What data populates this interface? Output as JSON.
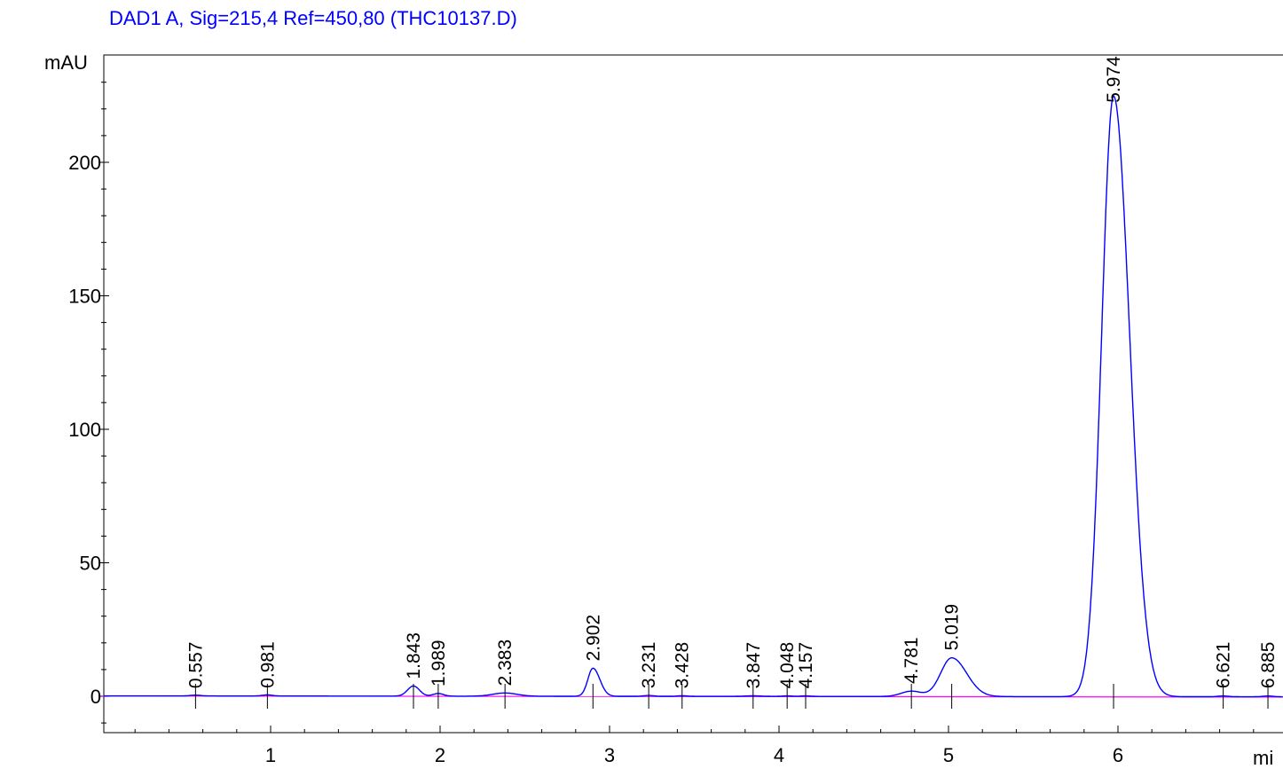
{
  "chart_data": {
    "type": "line",
    "title": "DAD1 A, Sig=215,4 Ref=450,80 (THC10137.D)",
    "ylabel": "mAU",
    "xlabel": "mi",
    "xlim": [
      0,
      7.0
    ],
    "ylim": [
      -15,
      240
    ],
    "x_ticks": [
      1,
      2,
      3,
      4,
      5,
      6
    ],
    "y_ticks": [
      0,
      50,
      100,
      150,
      200
    ],
    "grid": false,
    "colors": {
      "signal": "#0000ff",
      "baseline": "#ff00ff",
      "axis": "#000000",
      "title": "#0000ff"
    },
    "peaks": [
      {
        "rt": 0.557,
        "label": "0.557",
        "height": 0.3,
        "width": 0.03
      },
      {
        "rt": 0.981,
        "label": "0.981",
        "height": 0.4,
        "width": 0.03
      },
      {
        "rt": 1.843,
        "label": "1.843",
        "height": 3.8,
        "width": 0.035
      },
      {
        "rt": 1.989,
        "label": "1.989",
        "height": 1.0,
        "width": 0.03
      },
      {
        "rt": 2.383,
        "label": "2.383",
        "height": 1.2,
        "width": 0.07
      },
      {
        "rt": 2.902,
        "label": "2.902",
        "height": 10.5,
        "width": 0.03
      },
      {
        "rt": 3.231,
        "label": "3.231",
        "height": 0.3,
        "width": 0.03
      },
      {
        "rt": 3.428,
        "label": "3.428",
        "height": 0.2,
        "width": 0.03
      },
      {
        "rt": 3.847,
        "label": "3.847",
        "height": 0.2,
        "width": 0.05
      },
      {
        "rt": 4.048,
        "label": "4.048",
        "height": 0.2,
        "width": 0.03
      },
      {
        "rt": 4.157,
        "label": "4.157",
        "height": 0.2,
        "width": 0.03
      },
      {
        "rt": 4.781,
        "label": "4.781",
        "height": 2.0,
        "width": 0.06
      },
      {
        "rt": 5.019,
        "label": "5.019",
        "height": 14.5,
        "width": 0.065
      },
      {
        "rt": 5.974,
        "label": "5.974",
        "height": 225,
        "width": 0.07
      },
      {
        "rt": 6.621,
        "label": "6.621",
        "height": 0.3,
        "width": 0.03
      },
      {
        "rt": 6.885,
        "label": "6.885",
        "height": 0.3,
        "width": 0.03
      }
    ]
  }
}
